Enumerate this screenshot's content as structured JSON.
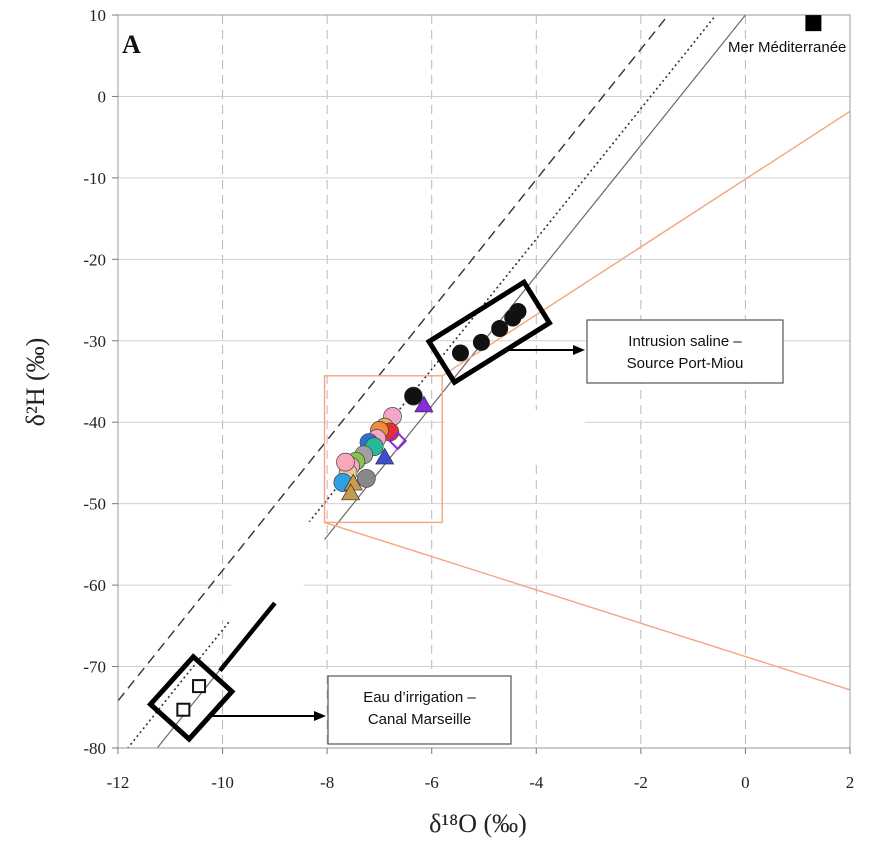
{
  "chart_data": {
    "type": "scatter",
    "panel_label": "A",
    "xlabel": "δ¹⁸O (‰)",
    "ylabel": "δ²H (‰)",
    "xlim": [
      -12,
      2
    ],
    "ylim": [
      -80,
      10
    ],
    "xticks": [
      -12,
      -10,
      -8,
      -6,
      -4,
      -2,
      0,
      2
    ],
    "yticks": [
      10,
      0,
      -10,
      -20,
      -30,
      -40,
      -50,
      -60,
      -70,
      -80
    ],
    "grid": "dashed",
    "colors": {
      "orange": "#f4a582",
      "black": "#111111",
      "gray": "#666666",
      "purple": "#8a2be2",
      "blue": "#2f6fd6"
    },
    "reference_lines": [
      {
        "style": "solid-gray",
        "slope": 8,
        "intercept": 10
      },
      {
        "style": "dotted",
        "slope": 8,
        "intercept": 14.5
      },
      {
        "style": "dashed",
        "slope": 8,
        "intercept": 21.8
      }
    ],
    "zoom_box": {
      "x": [
        -8.05,
        -5.8
      ],
      "y": [
        -52.3,
        -34.3
      ]
    },
    "zoom_rays": [
      {
        "from": [
          -5.8,
          -34.3
        ],
        "to": [
          2.8,
          1.5
        ]
      },
      {
        "from": [
          -8.05,
          -52.3
        ],
        "to": [
          2.8,
          -74.5
        ]
      }
    ],
    "groups": {
      "sea": [
        {
          "x": 1.3,
          "y": 9.0
        }
      ],
      "saline": [
        {
          "x": -5.45,
          "y": -31.5
        },
        {
          "x": -5.05,
          "y": -30.2
        },
        {
          "x": -4.7,
          "y": -28.5
        },
        {
          "x": -4.45,
          "y": -27.2
        },
        {
          "x": -4.35,
          "y": -26.4
        }
      ],
      "irrigation": [
        {
          "x": -10.45,
          "y": -72.4
        },
        {
          "x": -10.75,
          "y": -75.3
        }
      ],
      "cluster_circles": [
        {
          "x": -6.35,
          "y": -36.8,
          "color": "#111111"
        },
        {
          "x": -6.75,
          "y": -39.3,
          "color": "#f4a6c8"
        },
        {
          "x": -6.9,
          "y": -40.6,
          "color": "#e8b060"
        },
        {
          "x": -6.8,
          "y": -41.2,
          "color": "#e53030"
        },
        {
          "x": -7.0,
          "y": -41.0,
          "color": "#f08a3c"
        },
        {
          "x": -7.05,
          "y": -42.0,
          "color": "#f4a6c8"
        },
        {
          "x": -7.2,
          "y": -42.5,
          "color": "#2f6fd6"
        },
        {
          "x": -7.1,
          "y": -43.0,
          "color": "#28b89a"
        },
        {
          "x": -7.3,
          "y": -44.0,
          "color": "#a0a0a0"
        },
        {
          "x": -7.45,
          "y": -44.8,
          "color": "#8bc34a"
        },
        {
          "x": -7.55,
          "y": -45.4,
          "color": "#f4a6c8"
        },
        {
          "x": -7.6,
          "y": -46.2,
          "color": "#e8c898"
        },
        {
          "x": -7.7,
          "y": -47.4,
          "color": "#2f9fe8"
        },
        {
          "x": -7.25,
          "y": -46.9,
          "color": "#888888"
        },
        {
          "x": -7.65,
          "y": -44.9,
          "color": "#f8a8b8"
        }
      ],
      "cluster_triangles": [
        {
          "x": -6.15,
          "y": -37.9,
          "color": "#8a2be2"
        },
        {
          "x": -6.9,
          "y": -44.3,
          "color": "#3c4fd0"
        },
        {
          "x": -7.5,
          "y": -47.5,
          "color": "#c89a50"
        },
        {
          "x": -7.55,
          "y": -48.7,
          "color": "#c89a50"
        }
      ],
      "cluster_diamonds": [
        {
          "x": -6.65,
          "y": -42.3,
          "color": "#8a2be2"
        }
      ]
    },
    "annotations": [
      {
        "lines": [
          "Intrusion saline –",
          "Source Port-Miou"
        ]
      },
      {
        "lines": [
          "Eau d’irrigation –",
          "Canal Marseille"
        ]
      }
    ],
    "sea_label": "Mer Méditerranée"
  }
}
